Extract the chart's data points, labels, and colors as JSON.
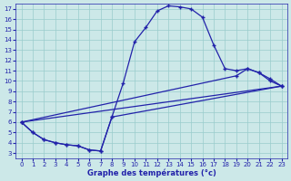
{
  "xlabel": "Graphe des températures (°c)",
  "bg_color": "#cce8e8",
  "line_color": "#2222aa",
  "grid_color": "#99cccc",
  "xlim": [
    -0.5,
    23.5
  ],
  "ylim": [
    2.5,
    17.5
  ],
  "xticks": [
    0,
    1,
    2,
    3,
    4,
    5,
    6,
    7,
    8,
    9,
    10,
    11,
    12,
    13,
    14,
    15,
    16,
    17,
    18,
    19,
    20,
    21,
    22,
    23
  ],
  "yticks": [
    3,
    4,
    5,
    6,
    7,
    8,
    9,
    10,
    11,
    12,
    13,
    14,
    15,
    16,
    17
  ],
  "curve1_x": [
    0,
    1,
    2,
    3,
    4,
    5,
    6,
    7,
    8,
    9,
    10,
    11,
    12,
    13,
    14,
    15,
    16,
    17,
    18,
    19,
    20,
    21,
    22,
    23
  ],
  "curve1_y": [
    6.0,
    5.0,
    4.3,
    4.0,
    3.8,
    3.7,
    3.3,
    3.2,
    6.5,
    9.8,
    13.8,
    15.2,
    16.8,
    17.3,
    17.2,
    17.0,
    16.2,
    13.5,
    11.2,
    11.0,
    11.2,
    10.8,
    10.2,
    9.5
  ],
  "curve2_x": [
    0,
    1,
    2,
    3,
    4,
    5,
    6,
    7,
    8,
    23
  ],
  "curve2_y": [
    6.0,
    5.0,
    4.3,
    4.0,
    3.8,
    3.7,
    3.3,
    3.2,
    6.5,
    9.5
  ],
  "curve3_x": [
    0,
    23
  ],
  "curve3_y": [
    6.0,
    9.5
  ],
  "curve4_x": [
    0,
    19,
    20,
    21,
    22,
    23
  ],
  "curve4_y": [
    6.0,
    10.5,
    11.2,
    10.8,
    10.0,
    9.5
  ]
}
